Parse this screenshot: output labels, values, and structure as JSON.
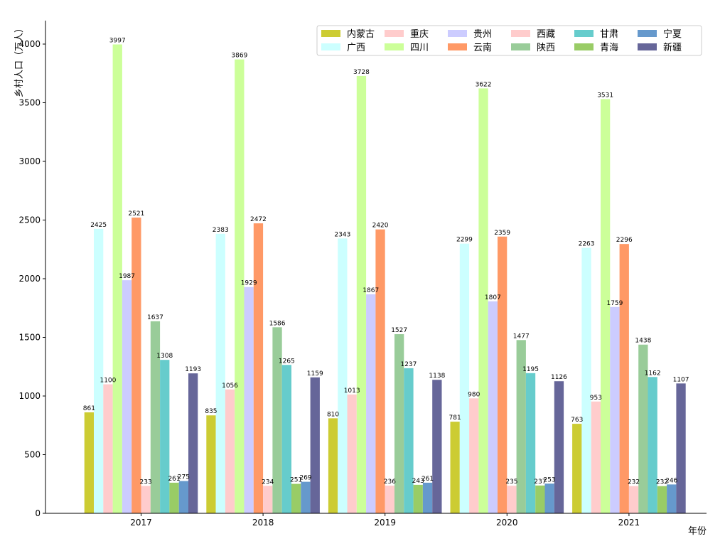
{
  "chart_data": {
    "type": "bar",
    "title": "",
    "xlabel": "年份",
    "ylabel": "乡村人口（万人）",
    "categories": [
      "2017",
      "2018",
      "2019",
      "2020",
      "2021"
    ],
    "ylim": [
      0,
      4200
    ],
    "yticks": [
      0,
      500,
      1000,
      1500,
      2000,
      2500,
      3000,
      3500,
      4000
    ],
    "grid": false,
    "legend_position": "top-right",
    "series": [
      {
        "name": "内蒙古",
        "color": "#cccc33",
        "values": [
          861,
          835,
          810,
          781,
          763
        ]
      },
      {
        "name": "广西",
        "color": "#ccffff",
        "values": [
          2425,
          2383,
          2343,
          2299,
          2263
        ]
      },
      {
        "name": "重庆",
        "color": "#ffcccc",
        "values": [
          1100,
          1056,
          1013,
          980,
          953
        ]
      },
      {
        "name": "四川",
        "color": "#ccff99",
        "values": [
          3997,
          3869,
          3728,
          3622,
          3531
        ]
      },
      {
        "name": "贵州",
        "color": "#ccccff",
        "values": [
          1987,
          1929,
          1867,
          1807,
          1759
        ]
      },
      {
        "name": "云南",
        "color": "#ff9966",
        "values": [
          2521,
          2472,
          2420,
          2359,
          2296
        ]
      },
      {
        "name": "西藏",
        "color": "#ffcccc",
        "values": [
          233,
          234,
          236,
          235,
          232
        ]
      },
      {
        "name": "陕西",
        "color": "#99cc99",
        "values": [
          1637,
          1586,
          1527,
          1477,
          1438
        ]
      },
      {
        "name": "甘肃",
        "color": "#66cccc",
        "values": [
          1308,
          1265,
          1237,
          1195,
          1162
        ]
      },
      {
        "name": "青海",
        "color": "#99cc66",
        "values": [
          261,
          251,
          243,
          237,
          232
        ]
      },
      {
        "name": "宁夏",
        "color": "#6699cc",
        "values": [
          275,
          269,
          261,
          253,
          246
        ]
      },
      {
        "name": "新疆",
        "color": "#666699",
        "values": [
          1193,
          1159,
          1138,
          1126,
          1107
        ]
      }
    ]
  }
}
